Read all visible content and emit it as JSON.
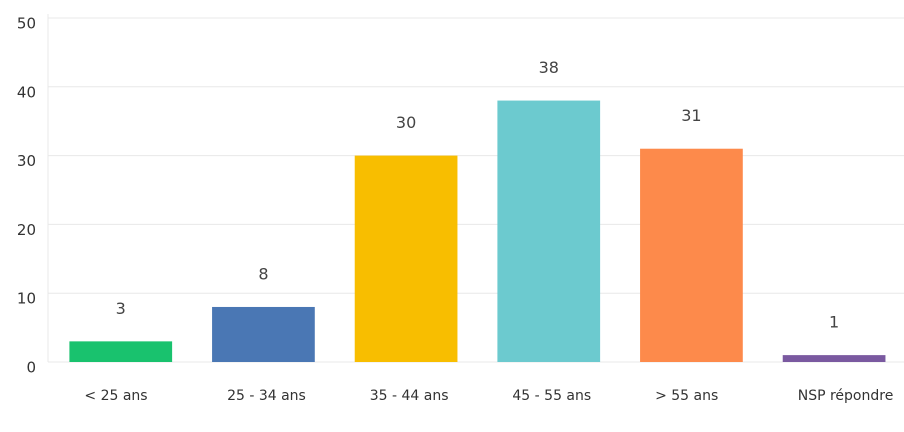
{
  "chart_data": {
    "type": "bar",
    "categories": [
      "< 25 ans",
      "25 - 34 ans",
      "35 - 44 ans",
      "45 - 55 ans",
      "> 55 ans",
      "NSP répondre"
    ],
    "values": [
      3,
      8,
      30,
      38,
      31,
      1
    ],
    "colors": [
      "#19c26e",
      "#4a77b4",
      "#f8be00",
      "#6ccacf",
      "#fd8a4b",
      "#7a59a0"
    ],
    "ylim": [
      0,
      50
    ],
    "yticks": [
      0,
      10,
      20,
      30,
      40,
      50
    ],
    "grid": true
  }
}
